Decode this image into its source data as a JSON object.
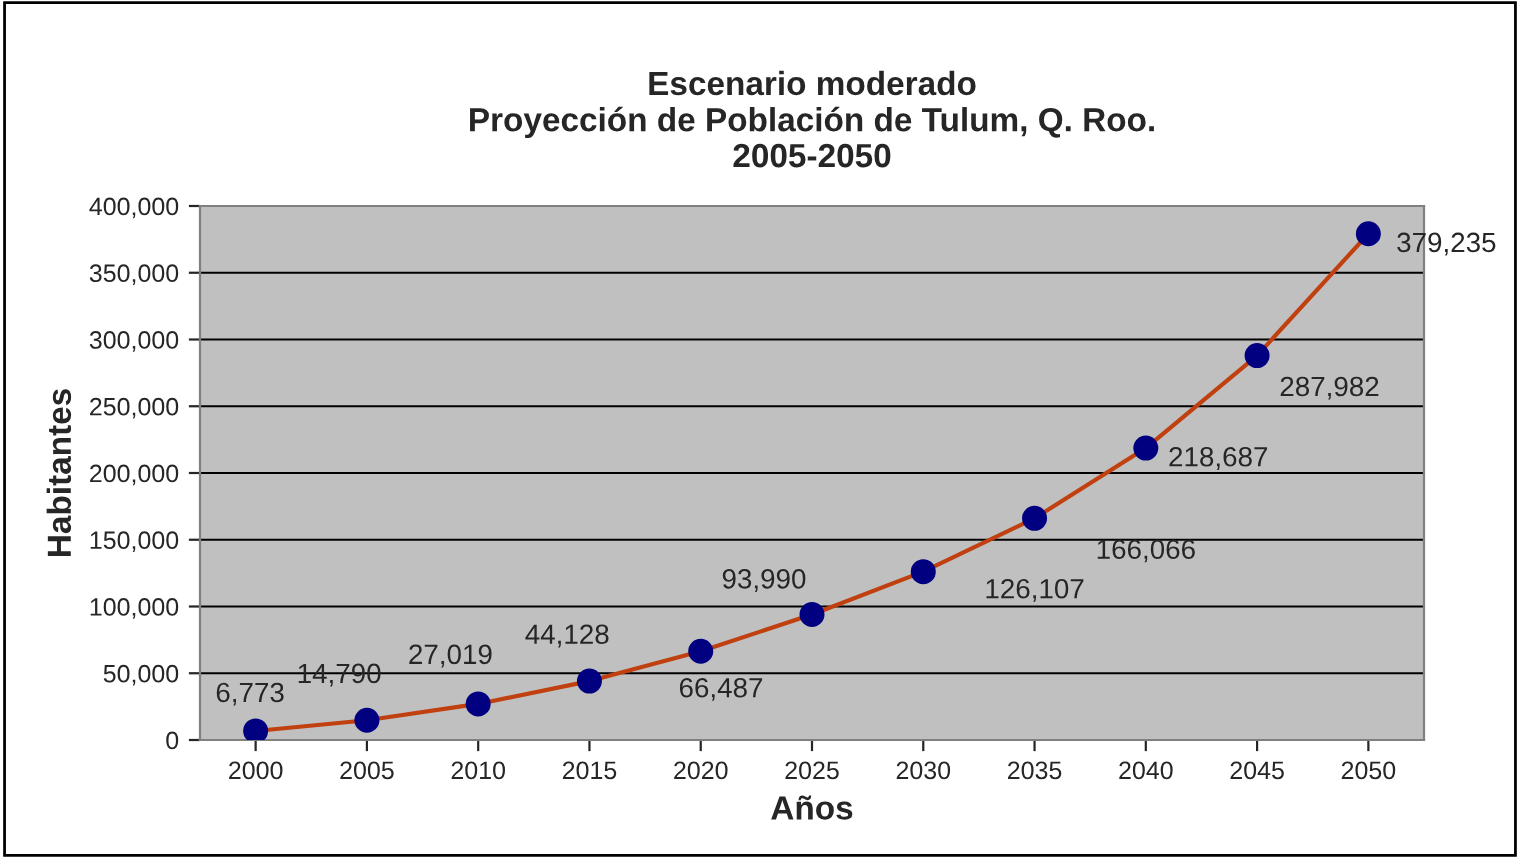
{
  "chart_data": {
    "type": "line",
    "title": "Escenario moderado\nProyección de Población de Tulum, Q. Roo.\n2005-2050",
    "xlabel": "Años",
    "ylabel": "Habitantes",
    "categories": [
      "2000",
      "2005",
      "2010",
      "2015",
      "2020",
      "2025",
      "2030",
      "2035",
      "2040",
      "2045",
      "2050"
    ],
    "series": [
      {
        "color": "#c04010",
        "colors": [
          "#000080",
          "#000080",
          "#000080",
          "#000080",
          "#000080",
          "#000080",
          "#000080",
          "#000080",
          "#000080",
          "#000080",
          "#000080"
        ],
        "values": [
          6773,
          14790,
          27019,
          44128,
          66487,
          93990,
          126107,
          166066,
          218687,
          287982,
          379235
        ],
        "value_labels": [
          "6,773",
          "14,790",
          "27,019",
          "44,128",
          "66,487",
          "93,990",
          "126,107",
          "166,066",
          "218,687",
          "287,982",
          "379,235"
        ]
      }
    ],
    "ylim": [
      0,
      400000
    ],
    "yticks": [
      0,
      {
        "value": 50000,
        "label": "50,000"
      },
      {
        "value": 100000,
        "label": "100,000"
      },
      {
        "value": 150000,
        "label": "150,000"
      },
      {
        "value": 200000,
        "label": "200,000"
      },
      {
        "value": 250000,
        "label": "250,000"
      },
      {
        "value": 300000,
        "label": "300,000"
      },
      {
        "value": 350000,
        "label": "350,000"
      },
      {
        "value": 400000,
        "label": "400,000"
      }
    ],
    "grid": "y",
    "marker": "circle",
    "line_style": "solid",
    "legend": false
  }
}
